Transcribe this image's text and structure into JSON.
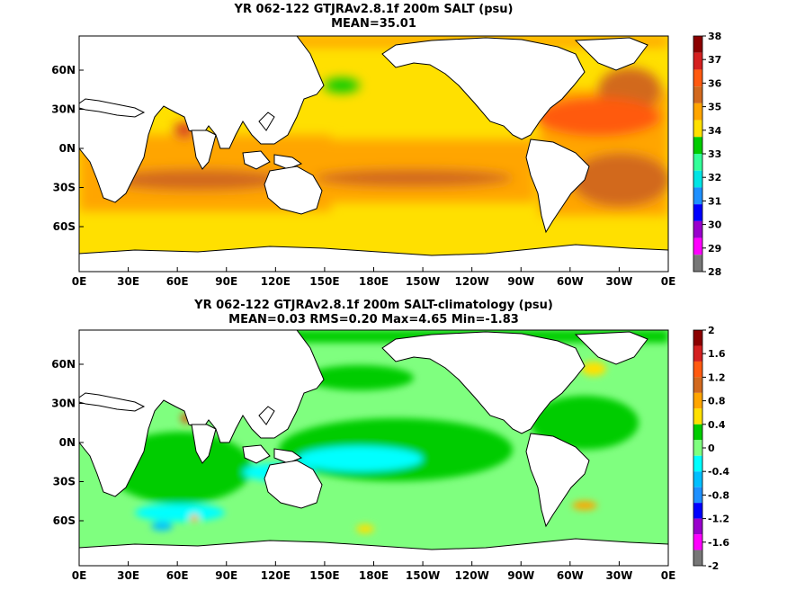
{
  "panels": [
    {
      "title": "YR 062-122 GTJRAv2.8.1f 200m SALT (psu)",
      "subtitle": "MEAN=35.01",
      "colorbar": {
        "labels": [
          "38",
          "37",
          "36",
          "35",
          "34",
          "33",
          "32",
          "31",
          "30",
          "29",
          "28"
        ],
        "colors": [
          "#8b0000",
          "#d42020",
          "#ff5a10",
          "#d2691e",
          "#ffa500",
          "#ffe000",
          "#00cc00",
          "#33ff99",
          "#00e5e5",
          "#1e90ff",
          "#0000ff",
          "#9900cc",
          "#ff00ff",
          "#777777"
        ]
      }
    },
    {
      "title": "YR 062-122 GTJRAv2.8.1f 200m SALT-climatology (psu)",
      "subtitle": "MEAN=0.03   RMS=0.20   Max=4.65   Min=-1.83",
      "colorbar": {
        "labels": [
          "2",
          "1.6",
          "1.2",
          "0.8",
          "0.4",
          "0",
          "-0.4",
          "-0.8",
          "-1.2",
          "-1.6",
          "-2"
        ],
        "colors": [
          "#8b0000",
          "#d42020",
          "#ff5a10",
          "#d2691e",
          "#ffa500",
          "#ffe000",
          "#00cc00",
          "#7fff7f",
          "#00ffff",
          "#00bfff",
          "#1e90ff",
          "#0000ff",
          "#9900cc",
          "#ff00ff",
          "#777777"
        ]
      }
    }
  ],
  "x_tick_labels": [
    "0E",
    "30E",
    "60E",
    "90E",
    "120E",
    "150E",
    "180E",
    "150W",
    "120W",
    "90W",
    "60W",
    "30W",
    "0E"
  ],
  "y_tick_labels": [
    "60N",
    "30N",
    "0N",
    "30S",
    "60S"
  ],
  "chart_data": [
    {
      "type": "heatmap",
      "title": "YR 062-122 GTJRAv2.8.1f 200m SALT (psu)",
      "subtitle": "MEAN=35.01",
      "x_range": [
        "0E",
        "0E"
      ],
      "y_ticks": [
        "60N",
        "30N",
        "0N",
        "30S",
        "60S"
      ],
      "colorbar_range": [
        28,
        38
      ],
      "mean": 35.01
    },
    {
      "type": "heatmap",
      "title": "YR 062-122 GTJRAv2.8.1f 200m SALT-climatology (psu)",
      "subtitle": "MEAN=0.03   RMS=0.20   Max=4.65   Min=-1.83",
      "x_range": [
        "0E",
        "0E"
      ],
      "y_ticks": [
        "60N",
        "30N",
        "0N",
        "30S",
        "60S"
      ],
      "colorbar_range": [
        -2,
        2
      ],
      "mean": 0.03,
      "rms": 0.2,
      "max": 4.65,
      "min": -1.83
    }
  ]
}
